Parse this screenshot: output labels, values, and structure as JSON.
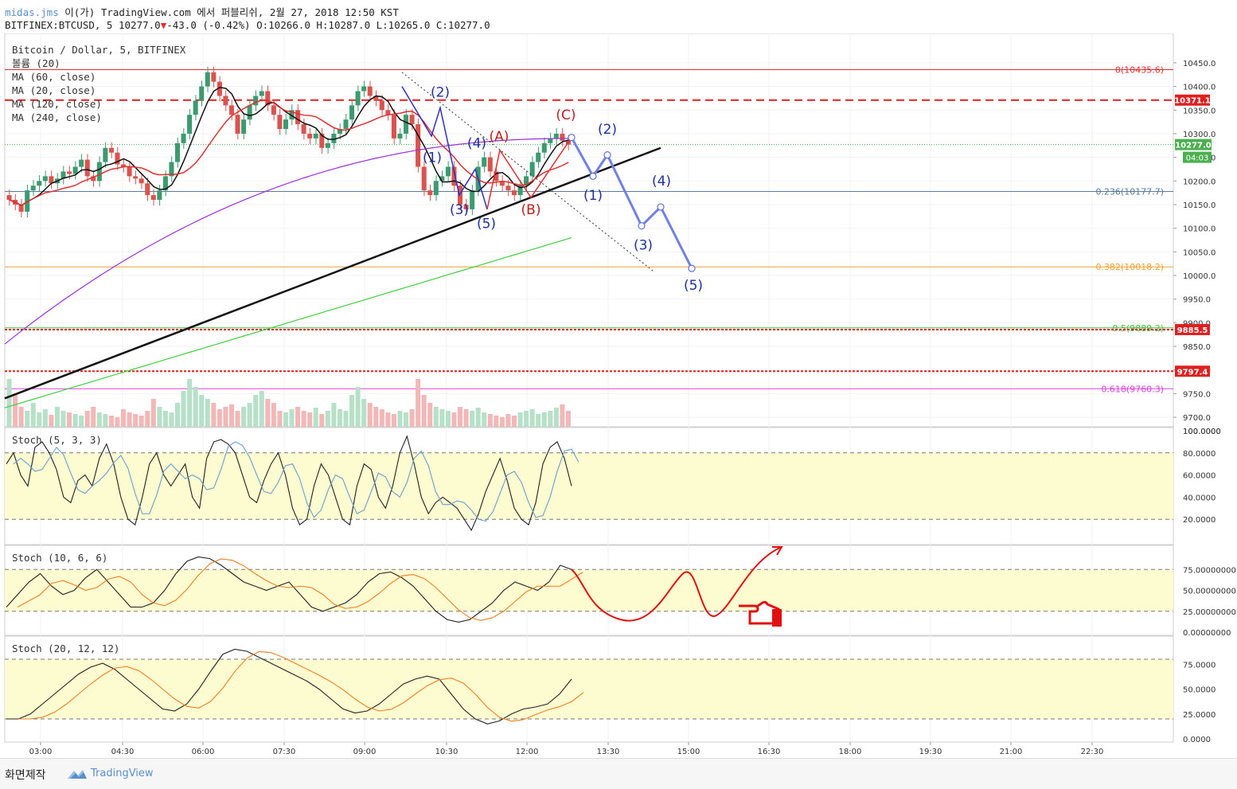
{
  "header": {
    "line1_user": "midas.jms",
    "line1_rest": "이(가) TradingView.com 에서 퍼블리쉬, 2월 27, 2018 12:50 KST",
    "line2_symbol": "BITFINEX:BTCUSD, 5",
    "line2_last": "10277.0",
    "line2_change": "-43.0 (-0.42%)",
    "line2_ohlc": "O:10266.0 H:10287.0 L:10265.0 C:10277.0"
  },
  "legend": {
    "title": "Bitcoin / Dollar, 5, BITFINEX",
    "items": [
      "볼륨 (20)",
      "MA (60, close)",
      "MA (20, close)",
      "MA (120, close)",
      "MA (240, close)"
    ]
  },
  "footer": {
    "left": "화면제작",
    "brand": "TradingView"
  },
  "price_badge": {
    "value": "10277.0",
    "time": "04:03",
    "color": "#4caf50"
  },
  "hand_icon": "pointing-hand-icon",
  "chart_data": {
    "type": "candlestick",
    "time_axis": [
      "03:00",
      "04:30",
      "06:00",
      "07:30",
      "09:00",
      "10:30",
      "12:00",
      "13:30",
      "15:00",
      "16:30",
      "18:00",
      "19:30",
      "21:00",
      "22:30"
    ],
    "price_axis": [
      "10450.0",
      "10400.0",
      "10350.0",
      "10300.0",
      "10250.0",
      "10200.0",
      "10150.0",
      "10100.0",
      "10050.0",
      "10000.0",
      "9950.0",
      "9900.0",
      "9850.0",
      "9800.0",
      "9750.0",
      "9700.0"
    ],
    "ylim": [
      9690,
      10465
    ],
    "fib_levels": [
      {
        "label": "0(10435.6)",
        "value": 10435.6,
        "color": "#e03030"
      },
      {
        "label": "0.236(10177.7)",
        "value": 10177.7,
        "color": "#5a7aa0"
      },
      {
        "label": "0.382(10018.2)",
        "value": 10018.2,
        "color": "#f0a030"
      },
      {
        "label": "0.5(9889.2)",
        "value": 9889.2,
        "color": "#40c040"
      },
      {
        "label": "0.618(9760.3)",
        "value": 9760.3,
        "color": "#e040e0"
      }
    ],
    "horizontal_levels": [
      {
        "label": "10371.1",
        "value": 10371.1,
        "style": "dashed",
        "color": "#e02020"
      },
      {
        "label": "9885.5",
        "value": 9885.5,
        "style": "dotted",
        "color": "#e02020"
      },
      {
        "label": "9797.4",
        "value": 9797.4,
        "style": "dotted",
        "color": "#e02020"
      }
    ],
    "candles_close": [
      10160,
      10150,
      10135,
      10180,
      10190,
      10200,
      10210,
      10195,
      10205,
      10220,
      10215,
      10230,
      10245,
      10210,
      10200,
      10240,
      10270,
      10260,
      10235,
      10230,
      10210,
      10205,
      10195,
      10170,
      10160,
      10180,
      10210,
      10240,
      10280,
      10300,
      10340,
      10370,
      10400,
      10430,
      10410,
      10380,
      10360,
      10340,
      10300,
      10330,
      10360,
      10380,
      10390,
      10360,
      10340,
      10310,
      10330,
      10350,
      10320,
      10300,
      10290,
      10300,
      10270,
      10280,
      10300,
      10310,
      10330,
      10360,
      10390,
      10400,
      10380,
      10370,
      10350,
      10340,
      10290,
      10300,
      10340,
      10320,
      10230,
      10180,
      10170,
      10200,
      10210,
      10230,
      10190,
      10150,
      10140,
      10180,
      10230,
      10250,
      10220,
      10200,
      10190,
      10180,
      10170,
      10190,
      10210,
      10240,
      10260,
      10280,
      10290,
      10300,
      10285,
      10277
    ],
    "volumes": [
      60,
      40,
      25,
      20,
      30,
      18,
      22,
      15,
      25,
      20,
      18,
      16,
      14,
      20,
      25,
      18,
      16,
      14,
      12,
      22,
      18,
      16,
      14,
      20,
      35,
      25,
      20,
      18,
      30,
      45,
      60,
      50,
      40,
      35,
      30,
      22,
      25,
      28,
      20,
      25,
      30,
      40,
      45,
      35,
      30,
      20,
      18,
      22,
      25,
      20,
      18,
      24,
      16,
      20,
      30,
      22,
      20,
      40,
      50,
      35,
      30,
      25,
      22,
      18,
      16,
      20,
      18,
      22,
      60,
      40,
      30,
      25,
      22,
      20,
      18,
      25,
      22,
      20,
      24,
      18,
      16,
      14,
      12,
      16,
      14,
      18,
      20,
      22,
      16,
      18,
      20,
      24,
      28,
      20
    ],
    "wave_labels_blue": [
      "(1)",
      "(2)",
      "(3)",
      "(4)",
      "(5)"
    ],
    "wave_labels_red": [
      "(A)",
      "(B)",
      "(C)"
    ],
    "projection_labels": [
      "(1)",
      "(2)",
      "(3)",
      "(4)",
      "(5)"
    ],
    "oscillators": [
      {
        "label": "Stoch (5, 3, 3)",
        "axis": [
          "100.0000",
          "80.0000",
          "60.0000",
          "40.0000",
          "20.0000"
        ]
      },
      {
        "label": "Stoch (10, 6, 6)",
        "axis": [
          "75.00000000",
          "50.00000000",
          "25.00000000",
          "0.00000000"
        ]
      },
      {
        "label": "Stoch (20, 12, 12)",
        "axis": [
          "75.0000",
          "50.0000",
          "25.0000",
          "0.0000"
        ]
      }
    ],
    "stoch1_k": [
      70,
      80,
      60,
      50,
      85,
      90,
      80,
      65,
      40,
      35,
      55,
      60,
      50,
      75,
      88,
      70,
      40,
      20,
      15,
      40,
      70,
      80,
      60,
      50,
      60,
      70,
      40,
      30,
      75,
      90,
      92,
      88,
      80,
      60,
      40,
      35,
      55,
      70,
      80,
      60,
      30,
      15,
      20,
      50,
      70,
      60,
      40,
      20,
      15,
      50,
      70,
      65,
      40,
      30,
      50,
      80,
      95,
      70,
      40,
      25,
      35,
      40,
      35,
      30,
      20,
      10,
      25,
      45,
      60,
      75,
      55,
      30,
      20,
      15,
      35,
      70,
      85,
      90,
      75,
      50
    ],
    "stoch2_k": [
      30,
      45,
      60,
      70,
      55,
      45,
      50,
      65,
      75,
      60,
      45,
      30,
      30,
      35,
      50,
      70,
      85,
      90,
      88,
      80,
      70,
      60,
      55,
      50,
      55,
      60,
      45,
      30,
      25,
      30,
      35,
      45,
      60,
      70,
      72,
      65,
      55,
      40,
      25,
      15,
      12,
      15,
      25,
      35,
      50,
      60,
      55,
      50,
      60,
      80,
      75
    ],
    "stoch3_k": [
      20,
      20,
      25,
      35,
      45,
      55,
      65,
      72,
      76,
      70,
      60,
      50,
      40,
      30,
      28,
      35,
      50,
      68,
      85,
      90,
      88,
      82,
      76,
      70,
      64,
      58,
      50,
      40,
      30,
      26,
      28,
      35,
      45,
      55,
      60,
      63,
      60,
      45,
      30,
      20,
      15,
      18,
      25,
      30,
      32,
      35,
      45,
      60
    ]
  }
}
